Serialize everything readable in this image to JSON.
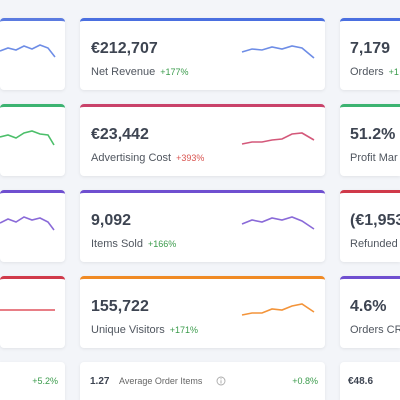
{
  "middle_cards": [
    {
      "value": "€212,707",
      "label": "Net Revenue",
      "change": "+177%"
    },
    {
      "value": "€23,442",
      "label": "Advertising Cost",
      "change": "+393%"
    },
    {
      "value": "9,092",
      "label": "Items Sold",
      "change": "+166%"
    },
    {
      "value": "155,722",
      "label": "Unique Visitors",
      "change": "+171%"
    }
  ],
  "right_cards": [
    {
      "value": "7,179",
      "label": "Orders",
      "change": "+1"
    },
    {
      "value": "51.2%",
      "label": "Profit Mar"
    },
    {
      "value": "(€1,953",
      "label": "Refunded"
    },
    {
      "value": "4.6%",
      "label": "Orders CR"
    }
  ],
  "bottom_row": {
    "left_change": "+5.2%",
    "middle": {
      "value": "1.27",
      "label": "Average Order Items",
      "change": "+0.8%"
    },
    "right_value": "€48.6"
  }
}
